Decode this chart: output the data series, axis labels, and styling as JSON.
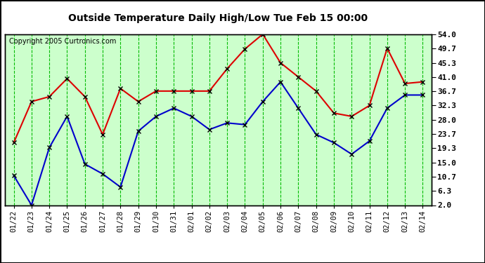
{
  "title": "Outside Temperature Daily High/Low Tue Feb 15 00:00",
  "copyright": "Copyright 2005 Curtronics.com",
  "x_labels": [
    "01/22",
    "01/23",
    "01/24",
    "01/25",
    "01/26",
    "01/27",
    "01/28",
    "01/29",
    "01/30",
    "01/31",
    "02/01",
    "02/02",
    "02/03",
    "02/04",
    "02/05",
    "02/06",
    "02/07",
    "02/08",
    "02/09",
    "02/10",
    "02/11",
    "02/12",
    "02/13",
    "02/14"
  ],
  "high_values": [
    21.0,
    33.5,
    35.0,
    40.5,
    35.0,
    23.5,
    37.5,
    33.5,
    36.7,
    36.7,
    36.7,
    36.7,
    43.5,
    49.5,
    54.0,
    45.3,
    41.0,
    36.7,
    30.0,
    29.0,
    32.3,
    49.7,
    39.0,
    39.5
  ],
  "low_values": [
    11.0,
    2.0,
    19.5,
    29.0,
    14.5,
    11.5,
    7.5,
    24.5,
    29.0,
    31.5,
    29.0,
    25.0,
    27.0,
    26.5,
    33.5,
    39.5,
    31.5,
    23.5,
    21.0,
    17.5,
    21.5,
    31.5,
    35.5,
    35.5
  ],
  "high_color": "#dd0000",
  "low_color": "#0000cc",
  "bg_color": "#ffffff",
  "plot_bg": "#ccffcc",
  "grid_color": "#00bb00",
  "border_color": "#000000",
  "title_color": "#000000",
  "yticks": [
    2.0,
    6.3,
    10.7,
    15.0,
    19.3,
    23.7,
    28.0,
    32.3,
    36.7,
    41.0,
    45.3,
    49.7,
    54.0
  ],
  "ylim": [
    2.0,
    54.0
  ],
  "marker": "x",
  "marker_color": "#000000",
  "marker_size": 5,
  "linewidth": 1.5
}
